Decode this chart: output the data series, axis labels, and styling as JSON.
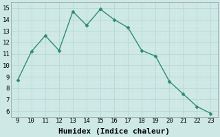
{
  "x": [
    9,
    10,
    11,
    12,
    13,
    14,
    15,
    16,
    17,
    18,
    19,
    20,
    21,
    22,
    23
  ],
  "y": [
    8.7,
    11.2,
    12.6,
    11.3,
    14.7,
    13.5,
    14.9,
    14.0,
    13.3,
    11.3,
    10.8,
    8.6,
    7.5,
    6.4,
    5.8
  ],
  "line_color": "#2e8b70",
  "marker": "D",
  "marker_size": 2.5,
  "bg_color": "#cde8e5",
  "grid_major_color": "#b8d8d5",
  "grid_minor_color": "#daecea",
  "xlabel": "Humidex (Indice chaleur)",
  "xlim": [
    8.5,
    23.5
  ],
  "ylim": [
    5.5,
    15.5
  ],
  "xticks": [
    9,
    10,
    11,
    12,
    13,
    14,
    15,
    16,
    17,
    18,
    19,
    20,
    21,
    22,
    23
  ],
  "yticks": [
    6,
    7,
    8,
    9,
    10,
    11,
    12,
    13,
    14,
    15
  ],
  "tick_fontsize": 6.5,
  "xlabel_fontsize": 8,
  "label_font": "monospace"
}
